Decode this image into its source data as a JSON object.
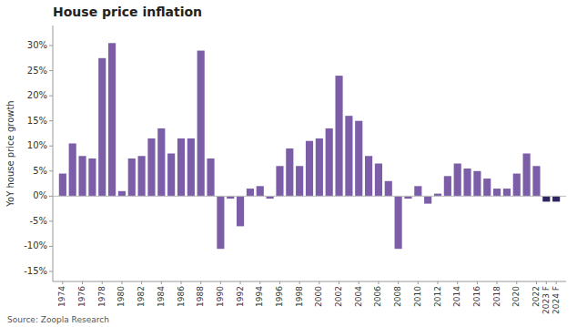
{
  "chart_data": {
    "type": "bar",
    "title": "House price inflation",
    "y_label": "YoY house price growth",
    "annotations": [
      "Source: Zoopla Research"
    ],
    "x": [
      1974,
      1975,
      1976,
      1977,
      1978,
      1979,
      1980,
      1981,
      1982,
      1983,
      1984,
      1985,
      1986,
      1987,
      1988,
      1989,
      1990,
      1991,
      1992,
      1993,
      1994,
      1995,
      1996,
      1997,
      1998,
      1999,
      2000,
      2001,
      2002,
      2003,
      2004,
      2005,
      2006,
      2007,
      2008,
      2009,
      2010,
      2011,
      2012,
      2013,
      2014,
      2015,
      2016,
      2017,
      2018,
      2019,
      2020,
      2021,
      2022,
      2023,
      2024
    ],
    "values": [
      4.5,
      10.5,
      8.0,
      7.5,
      27.5,
      30.5,
      1.0,
      7.5,
      8.0,
      11.5,
      13.5,
      8.5,
      11.5,
      11.5,
      29.0,
      7.5,
      -10.5,
      -0.5,
      -6.0,
      1.5,
      2.0,
      -0.5,
      6.0,
      9.5,
      6.0,
      11.0,
      11.5,
      13.5,
      24.0,
      16.0,
      15.0,
      8.0,
      6.5,
      3.0,
      -10.5,
      -0.5,
      2.0,
      -1.5,
      0.5,
      4.0,
      6.5,
      5.5,
      5.0,
      3.5,
      1.5,
      1.5,
      4.5,
      8.5,
      6.0,
      -1.1,
      -1.1
    ],
    "colors": [
      "#7B5EA7",
      "#7B5EA7",
      "#7B5EA7",
      "#7B5EA7",
      "#7B5EA7",
      "#7B5EA7",
      "#7B5EA7",
      "#7B5EA7",
      "#7B5EA7",
      "#7B5EA7",
      "#7B5EA7",
      "#7B5EA7",
      "#7B5EA7",
      "#7B5EA7",
      "#7B5EA7",
      "#7B5EA7",
      "#7B5EA7",
      "#7B5EA7",
      "#7B5EA7",
      "#7B5EA7",
      "#7B5EA7",
      "#7B5EA7",
      "#7B5EA7",
      "#7B5EA7",
      "#7B5EA7",
      "#7B5EA7",
      "#7B5EA7",
      "#7B5EA7",
      "#7B5EA7",
      "#7B5EA7",
      "#7B5EA7",
      "#7B5EA7",
      "#7B5EA7",
      "#7B5EA7",
      "#7B5EA7",
      "#7B5EA7",
      "#7B5EA7",
      "#7B5EA7",
      "#7B5EA7",
      "#7B5EA7",
      "#7B5EA7",
      "#7B5EA7",
      "#7B5EA7",
      "#7B5EA7",
      "#7B5EA7",
      "#7B5EA7",
      "#7B5EA7",
      "#7B5EA7",
      "#7B5EA7",
      "#2D2560",
      "#2D2560"
    ],
    "xlim": [
      1973.0,
      2025.0
    ],
    "xticks": [
      1974,
      1976,
      1978,
      1980,
      1982,
      1984,
      1986,
      1988,
      1990,
      1992,
      1994,
      1996,
      1998,
      2000,
      2002,
      2004,
      2006,
      2008,
      2010,
      2012,
      2014,
      2016,
      2018,
      2020,
      2022,
      {
        "value": 2023,
        "label": "2023 F"
      },
      {
        "value": 2024,
        "label": "2024 F"
      }
    ],
    "ylim": [
      -17,
      34
    ],
    "yticks": [
      {
        "value": -15,
        "label": "-15%"
      },
      {
        "value": -10,
        "label": "-10%"
      },
      {
        "value": -5,
        "label": "-5%"
      },
      {
        "value": 0,
        "label": "0%"
      },
      {
        "value": 5,
        "label": "5%"
      },
      {
        "value": 10,
        "label": "10%"
      },
      {
        "value": 15,
        "label": "15%"
      },
      {
        "value": 20,
        "label": "20%"
      },
      {
        "value": 25,
        "label": "25%"
      },
      {
        "value": 30,
        "label": "30%"
      }
    ],
    "grid": false
  }
}
